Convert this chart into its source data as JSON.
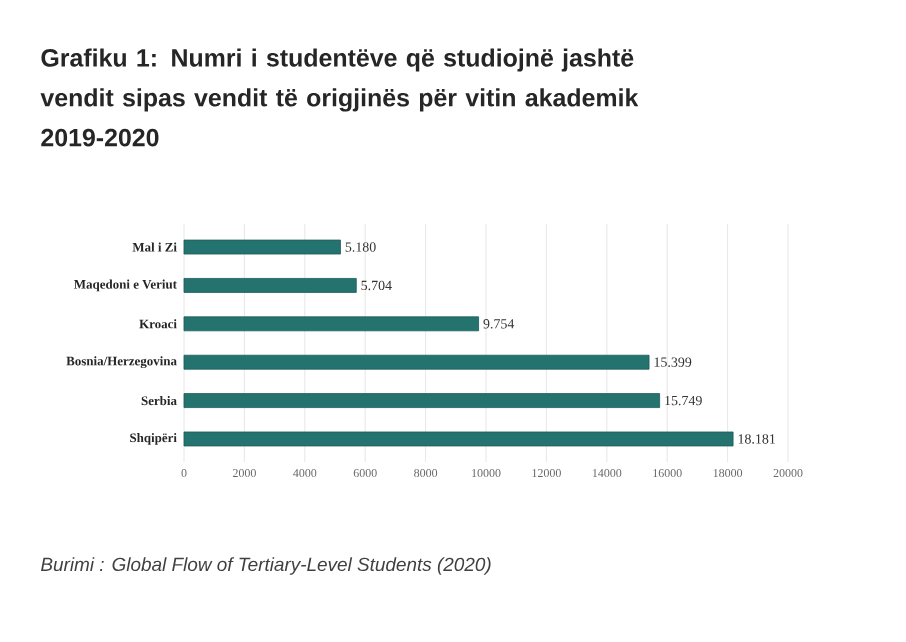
{
  "chart_data": {
    "type": "bar",
    "orientation": "horizontal",
    "title": "Grafiku 1: Numri i studentëve që studiojnë jashtë vendit sipas vendit të origjinës për vitin akademik 2019-2020",
    "categories": [
      "Mal i Zi",
      "Maqedoni e Veriut",
      "Kroaci",
      "Bosnia/Herzegovina",
      "Serbia",
      "Shqipëri"
    ],
    "values": [
      5180,
      5704,
      9754,
      15399,
      15749,
      18181
    ],
    "value_labels": [
      "5.180",
      "5.704",
      "9.754",
      "15.399",
      "15.749",
      "18.181"
    ],
    "color": "#24736f",
    "xlim": [
      0,
      20000
    ],
    "xticks": [
      0,
      2000,
      4000,
      6000,
      8000,
      10000,
      12000,
      14000,
      16000,
      18000,
      20000
    ],
    "grid": "x",
    "annotations": [
      "Burimi : Global Flow of Tertiary-Level Students (2020)"
    ]
  }
}
